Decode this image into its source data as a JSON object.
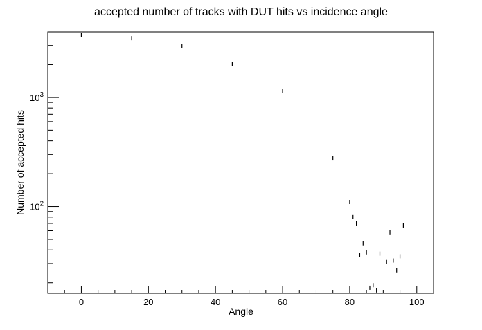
{
  "chart_data": {
    "type": "scatter",
    "title": "accepted number of tracks with DUT hits vs incidence angle",
    "xlabel": "Angle",
    "ylabel": "Number of accepted hits",
    "xlim": [
      -10,
      105
    ],
    "ylim": [
      16,
      4000
    ],
    "yscale": "log",
    "grid": false,
    "xticks": [
      {
        "value": 0,
        "label": "0"
      },
      {
        "value": 20,
        "label": "20"
      },
      {
        "value": 40,
        "label": "40"
      },
      {
        "value": 60,
        "label": "60"
      },
      {
        "value": 80,
        "label": "80"
      },
      {
        "value": 100,
        "label": "100"
      }
    ],
    "yticks": [
      {
        "value": 100,
        "base": "10",
        "exp": "2"
      },
      {
        "value": 1000,
        "base": "10",
        "exp": "3"
      }
    ],
    "marker_color": "#000000",
    "points": [
      {
        "x": 0,
        "y": 3750
      },
      {
        "x": 15,
        "y": 3500
      },
      {
        "x": 30,
        "y": 2950
      },
      {
        "x": 45,
        "y": 2020
      },
      {
        "x": 60,
        "y": 1150
      },
      {
        "x": 75,
        "y": 280
      },
      {
        "x": 80,
        "y": 110
      },
      {
        "x": 81,
        "y": 80
      },
      {
        "x": 82,
        "y": 70
      },
      {
        "x": 83,
        "y": 36
      },
      {
        "x": 84,
        "y": 46
      },
      {
        "x": 85,
        "y": 38
      },
      {
        "x": 86,
        "y": 18
      },
      {
        "x": 87,
        "y": 19
      },
      {
        "x": 88,
        "y": 17
      },
      {
        "x": 89,
        "y": 37
      },
      {
        "x": 91,
        "y": 31
      },
      {
        "x": 92,
        "y": 58
      },
      {
        "x": 93,
        "y": 32
      },
      {
        "x": 94,
        "y": 26
      },
      {
        "x": 95,
        "y": 35
      },
      {
        "x": 96,
        "y": 67
      }
    ]
  }
}
